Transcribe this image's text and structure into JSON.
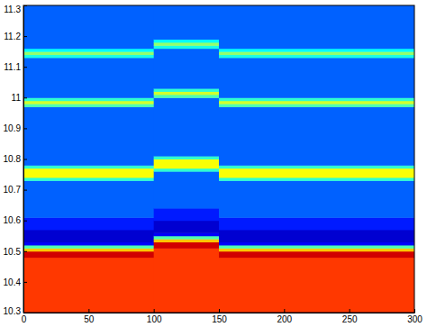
{
  "chart_data": {
    "type": "heatmap",
    "xlim": [
      0,
      300
    ],
    "xticks": [
      0,
      50,
      100,
      150,
      200,
      250,
      300
    ],
    "ylim": [
      10.3,
      11.3
    ],
    "yticks": [
      10.3,
      10.4,
      10.5,
      10.6,
      10.7,
      10.8,
      10.9,
      11,
      11.1,
      11.2,
      11.3
    ],
    "zlim": [
      0,
      1
    ],
    "columns": [
      {
        "x0": 0,
        "x1": 100,
        "y_edges": [
          10.3,
          10.48,
          10.5,
          10.51,
          10.52,
          10.53,
          10.57,
          10.61,
          10.73,
          10.74,
          10.77,
          10.78,
          10.97,
          10.98,
          10.99,
          11.0,
          11.13,
          11.14,
          11.15,
          11.16,
          11.3
        ],
        "values": [
          0.82,
          0.92,
          0.68,
          0.45,
          0.12,
          0.08,
          0.15,
          0.22,
          0.42,
          0.62,
          0.42,
          0.22,
          0.45,
          0.58,
          0.42,
          0.22,
          0.4,
          0.52,
          0.38,
          0.22
        ]
      },
      {
        "x0": 100,
        "x1": 150,
        "y_edges": [
          10.3,
          10.51,
          10.53,
          10.54,
          10.55,
          10.56,
          10.6,
          10.64,
          10.76,
          10.77,
          10.8,
          10.81,
          11.0,
          11.01,
          11.02,
          11.03,
          11.16,
          11.17,
          11.18,
          11.19,
          11.3
        ],
        "values": [
          0.82,
          0.92,
          0.68,
          0.45,
          0.12,
          0.08,
          0.15,
          0.22,
          0.42,
          0.62,
          0.42,
          0.22,
          0.45,
          0.58,
          0.42,
          0.22,
          0.4,
          0.52,
          0.38,
          0.22
        ]
      },
      {
        "x0": 150,
        "x1": 300,
        "y_edges": [
          10.3,
          10.48,
          10.5,
          10.51,
          10.52,
          10.53,
          10.57,
          10.61,
          10.73,
          10.74,
          10.77,
          10.78,
          10.97,
          10.98,
          10.99,
          11.0,
          11.13,
          11.14,
          11.15,
          11.16,
          11.3
        ],
        "values": [
          0.82,
          0.92,
          0.68,
          0.45,
          0.12,
          0.08,
          0.15,
          0.22,
          0.42,
          0.62,
          0.42,
          0.22,
          0.45,
          0.58,
          0.42,
          0.22,
          0.4,
          0.52,
          0.38,
          0.22
        ]
      }
    ]
  }
}
